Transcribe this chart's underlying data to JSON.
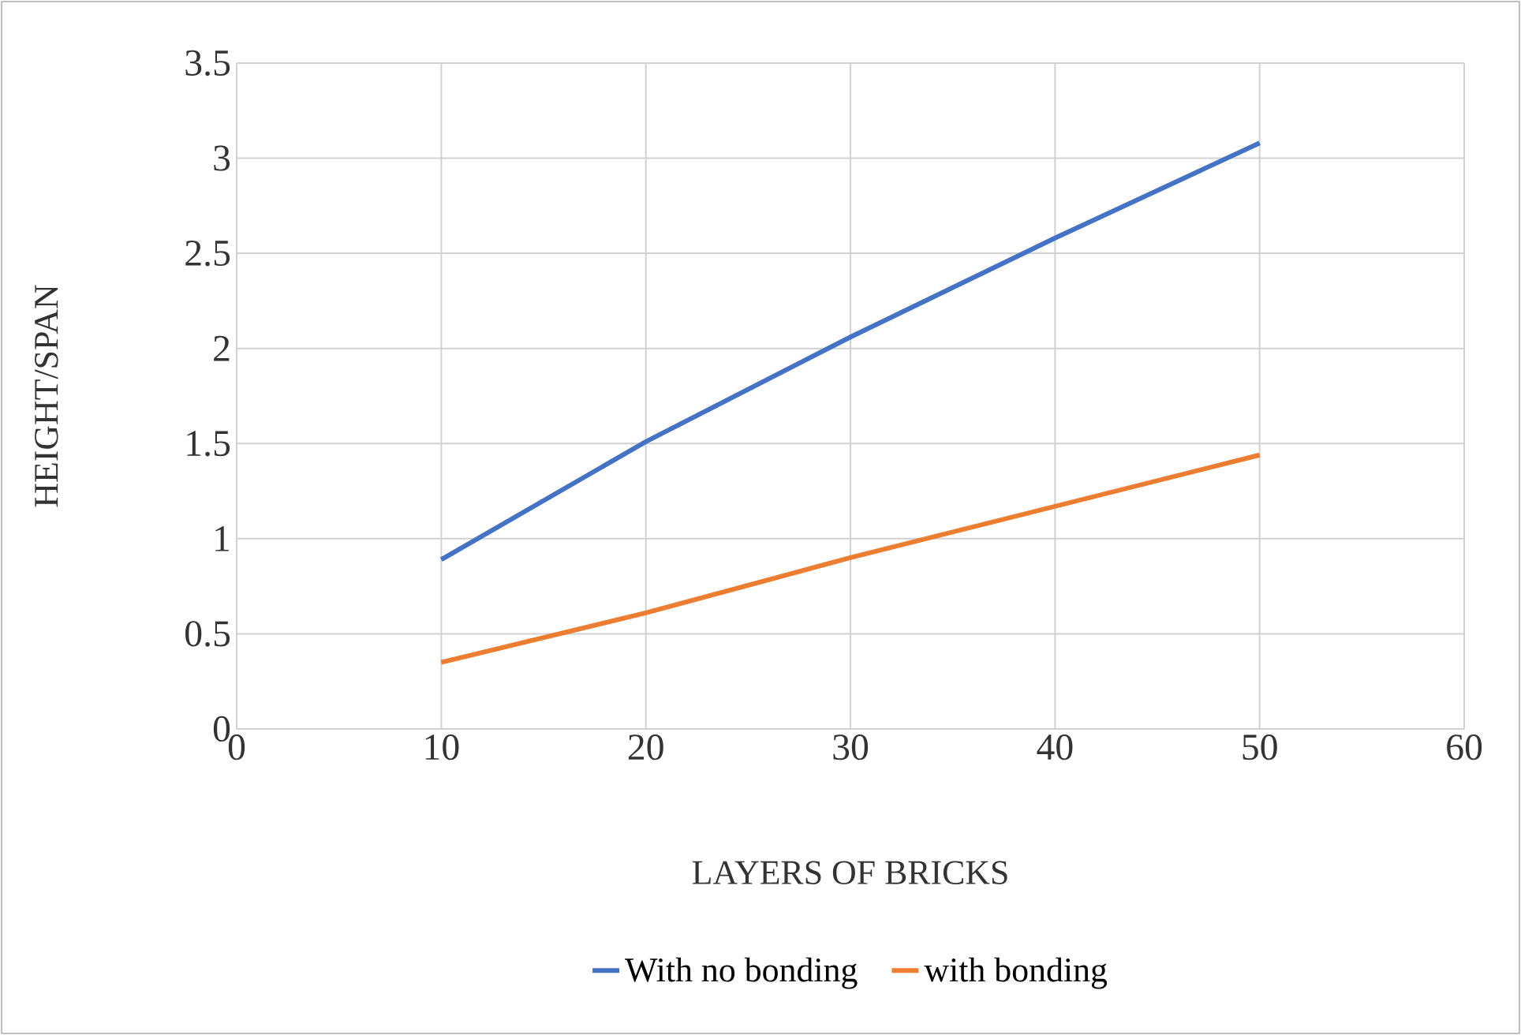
{
  "chart_data": {
    "type": "line",
    "xlabel": "LAYERS OF BRICKS",
    "ylabel": "HEIGHT/SPAN",
    "x": [
      10,
      20,
      30,
      40,
      50
    ],
    "series": [
      {
        "name": "With no bonding",
        "color": "#4472c4",
        "values": [
          0.89,
          1.51,
          2.06,
          2.58,
          3.08
        ]
      },
      {
        "name": "with bonding",
        "color": "#ed7d31",
        "values": [
          0.35,
          0.61,
          0.9,
          1.17,
          1.44
        ]
      }
    ],
    "xlim": [
      0,
      60
    ],
    "ylim": [
      0,
      3.5
    ],
    "xticks": [
      0,
      10,
      20,
      30,
      40,
      50,
      60
    ],
    "yticks": [
      0,
      0.5,
      1,
      1.5,
      2,
      2.5,
      3,
      3.5
    ],
    "grid": true,
    "legend": "bottom"
  }
}
